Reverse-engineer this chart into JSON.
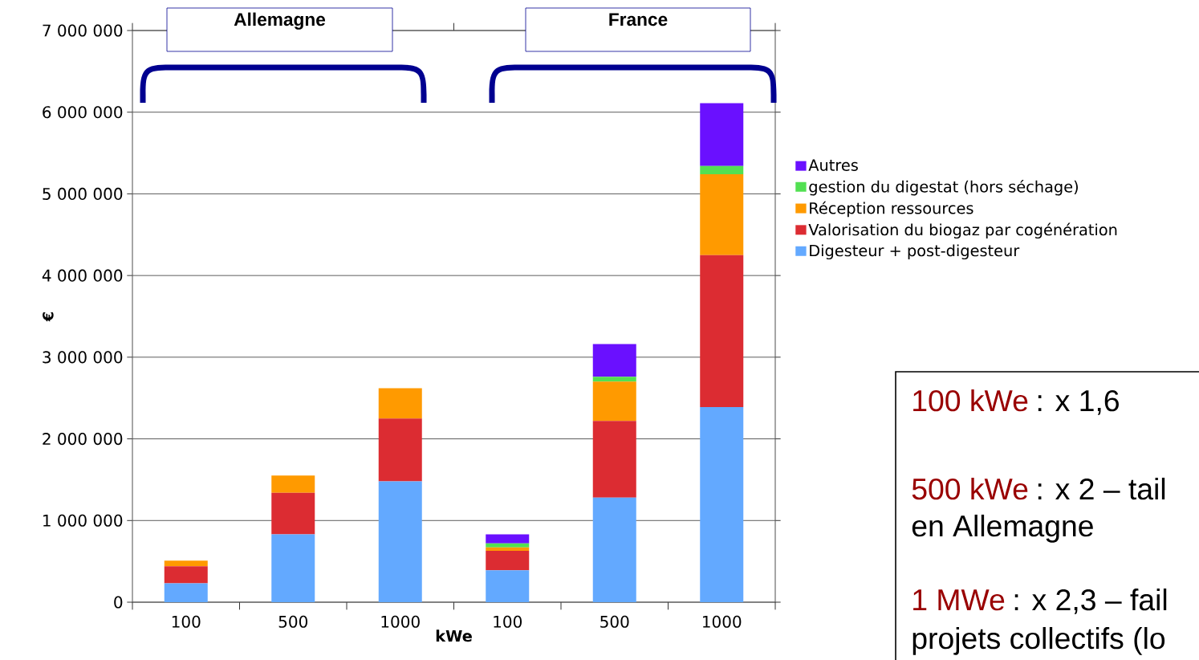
{
  "chart_data": {
    "type": "bar",
    "stacked": true,
    "categories": [
      "100",
      "500",
      "1000",
      "100",
      "500",
      "1000"
    ],
    "series": [
      {
        "name": "Digesteur + post-digesteur",
        "color": "#63a9ff",
        "values": [
          230000,
          830000,
          1480000,
          390000,
          1280000,
          2390000
        ]
      },
      {
        "name": "Valorisation du biogaz par cogénération",
        "color": "#dc2c32",
        "values": [
          210000,
          510000,
          770000,
          240000,
          940000,
          1860000
        ]
      },
      {
        "name": "Réception ressources",
        "color": "#ff9a00",
        "values": [
          70000,
          210000,
          370000,
          40000,
          480000,
          990000
        ]
      },
      {
        "name": "gestion du digestat (hors séchage)",
        "color": "#52e052",
        "values": [
          null,
          null,
          null,
          50000,
          60000,
          100000
        ]
      },
      {
        "name": "Autres",
        "color": "#6a10ff",
        "values": [
          null,
          null,
          null,
          110000,
          400000,
          770000
        ]
      }
    ],
    "xlabel": "kWe",
    "ylabel": "€",
    "ylim": [
      0,
      7000000
    ],
    "yticks": [
      {
        "value": 0,
        "label": "0"
      },
      {
        "value": 1000000,
        "label": "1 000 000"
      },
      {
        "value": 2000000,
        "label": "2 000 000"
      },
      {
        "value": 3000000,
        "label": "3 000 000"
      },
      {
        "value": 4000000,
        "label": "4 000 000"
      },
      {
        "value": 5000000,
        "label": "5 000 000"
      },
      {
        "value": 6000000,
        "label": "6 000 000"
      },
      {
        "value": 7000000,
        "label": "7 000 000"
      }
    ],
    "grid": "y",
    "legend": "right",
    "annotations": [
      "Allemagne",
      "France",
      "100 kWe",
      ": x 1,6",
      "500 kWe",
      ": x 2 – tail",
      "en Allemagne",
      "1 MWe",
      ": x 2,3 – fail",
      "projets collectifs (lo"
    ]
  }
}
